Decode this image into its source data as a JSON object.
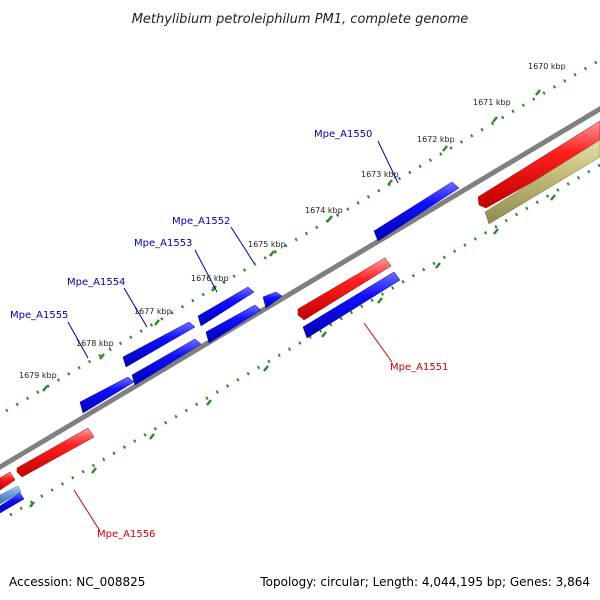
{
  "title": "Methylibium petroleiphilum PM1, complete genome",
  "footer": {
    "accession": "Accession: NC_008825",
    "stats": "Topology: circular; Length: 4,044,195 bp; Genes: 3,864"
  },
  "colors": {
    "backbone": "#808080",
    "forward_gene": "#ff0000",
    "reverse_gene": "#0000ff",
    "other_gene": "#b5b06a",
    "light_gene": "#6f9fd8",
    "tick": "#2d8a2d",
    "label_forward": "#cc0000",
    "label_reverse": "#0000aa"
  },
  "kbp_ticks": [
    {
      "label": "1670 kbp"
    },
    {
      "label": "1671 kbp"
    },
    {
      "label": "1672 kbp"
    },
    {
      "label": "1673 kbp"
    },
    {
      "label": "1674 kbp"
    },
    {
      "label": "1675 kbp"
    },
    {
      "label": "1676 kbp"
    },
    {
      "label": "1677 kbp"
    },
    {
      "label": "1678 kbp"
    },
    {
      "label": "1679 kbp"
    }
  ],
  "gene_labels": [
    {
      "label": "Mpe_A1550",
      "strand": "reverse"
    },
    {
      "label": "Mpe_A1551",
      "strand": "forward"
    },
    {
      "label": "Mpe_A1552",
      "strand": "reverse"
    },
    {
      "label": "Mpe_A1553",
      "strand": "reverse"
    },
    {
      "label": "Mpe_A1554",
      "strand": "reverse"
    },
    {
      "label": "Mpe_A1555",
      "strand": "reverse"
    },
    {
      "label": "Mpe_A1556",
      "strand": "forward"
    }
  ]
}
